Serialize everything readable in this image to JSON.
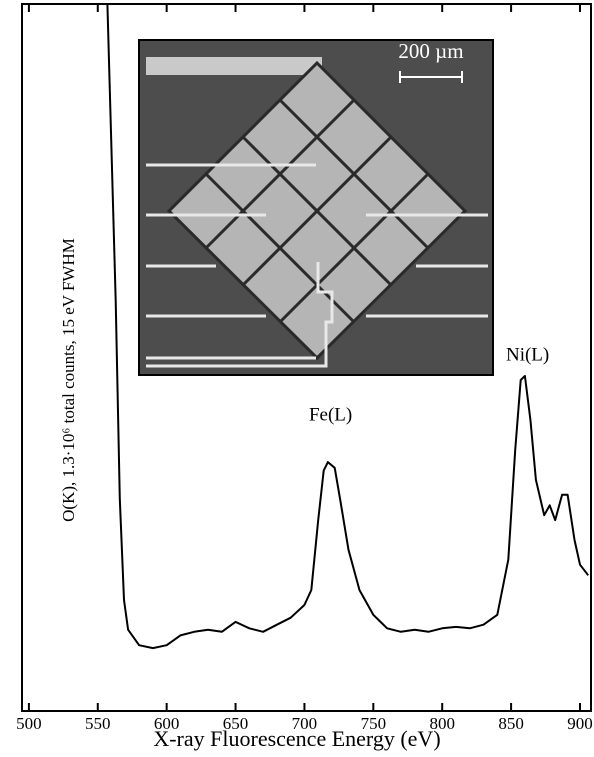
{
  "chart_data": {
    "type": "line",
    "title_x": "X-ray Fluorescence Energy (eV)",
    "title_y": "O(K), 1.3·10⁶ total counts, 15 eV FWHM",
    "x": [
      557,
      563,
      566,
      569,
      572,
      580,
      590,
      600,
      610,
      620,
      630,
      640,
      650,
      660,
      670,
      680,
      690,
      700,
      705,
      710,
      714,
      717,
      722,
      726,
      732,
      740,
      750,
      760,
      770,
      780,
      790,
      800,
      810,
      820,
      830,
      840,
      848,
      853,
      857,
      860,
      864,
      868,
      874,
      878,
      882,
      887,
      891,
      896,
      900,
      906
    ],
    "series": [
      {
        "color": "#000000",
        "values": [
          100,
          58,
          30,
          15.7,
          11.5,
          9.3,
          8.9,
          9.3,
          10.7,
          11.2,
          11.5,
          11.2,
          12.6,
          11.7,
          11.2,
          12.2,
          13.2,
          15,
          17.1,
          27,
          34,
          35.2,
          34.4,
          29.8,
          22.8,
          17.1,
          13.6,
          11.7,
          11.2,
          11.5,
          11.2,
          11.7,
          11.9,
          11.7,
          12.2,
          13.6,
          21.4,
          36.9,
          46.8,
          47.4,
          41.2,
          32.7,
          27.7,
          29.1,
          27,
          30.6,
          30.6,
          24.2,
          20.7,
          19.2
        ]
      }
    ],
    "xlim": [
      495,
      908
    ],
    "xticks": [
      500,
      550,
      600,
      650,
      700,
      750,
      800,
      850,
      900
    ],
    "ylim": [
      0,
      100
    ],
    "annotations": [
      {
        "text": "Fe(L)",
        "x": 719,
        "y": 38
      },
      {
        "text": "Ni(L)",
        "x": 862,
        "y": 46.5
      }
    ],
    "inset": {
      "scale_label": "200 µm"
    }
  }
}
